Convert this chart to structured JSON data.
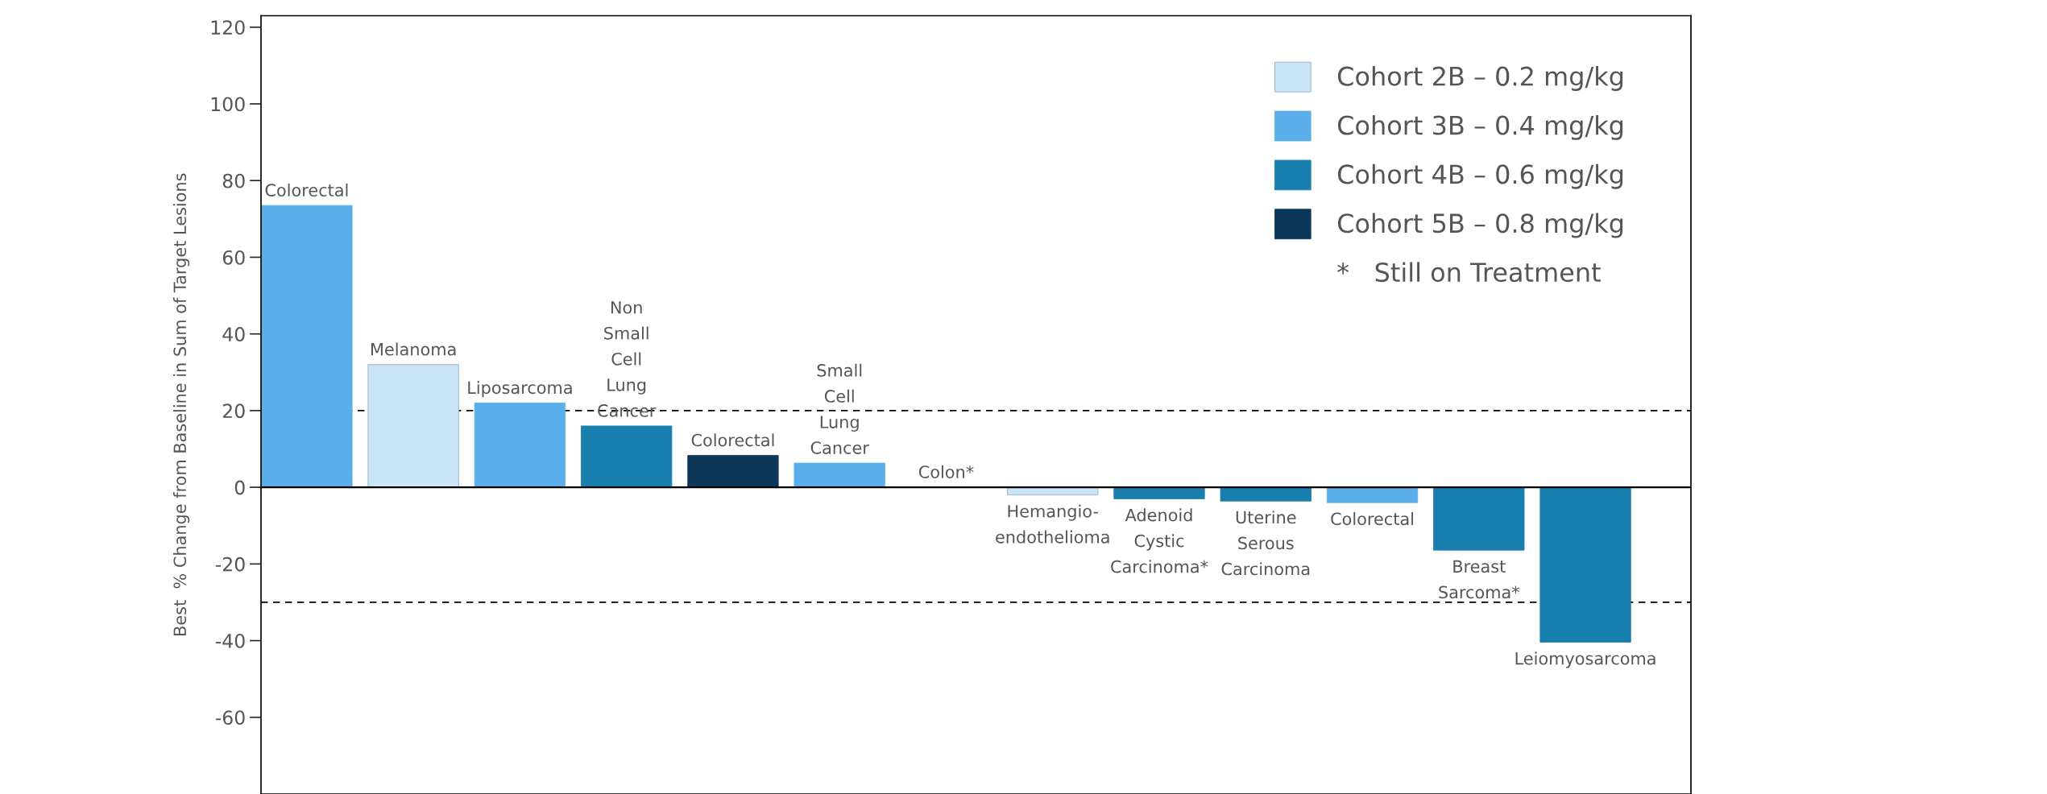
{
  "chart_data": {
    "type": "bar",
    "ylabel": "Best  % Change from Baseline in Sum of Target Lesions",
    "categories": [
      "Colorectal",
      "Melanoma",
      "Liposarcoma",
      "Non\nSmall\nCell\nLung\nCancer",
      "Colorectal",
      "Small\nCell\nLung\nCancer",
      "Colon*",
      "Hemangio-\nendothelioma",
      "Adenoid\nCystic\nCarcinoma*",
      "Uterine\nSerous\nCarcinoma",
      "Colorectal",
      "Breast\nSarcoma*",
      "Leiomyosarcoma"
    ],
    "series": [
      {
        "name": "Cohort 2B – 0.2 mg/kg",
        "color": "#c9e3f7",
        "values": [
          null,
          32,
          null,
          null,
          null,
          null,
          null,
          -2,
          null,
          null,
          null,
          null,
          null
        ]
      },
      {
        "name": "Cohort 3B – 0.4 mg/kg",
        "color": "#5aaeea",
        "values": [
          73.5,
          null,
          22,
          null,
          null,
          6.3,
          0,
          null,
          null,
          null,
          -4,
          null,
          null
        ]
      },
      {
        "name": "Cohort 4B – 0.6 mg/kg",
        "color": "#187fae",
        "values": [
          null,
          null,
          null,
          16,
          null,
          null,
          null,
          null,
          -3,
          -3.6,
          null,
          -16.4,
          -40.4
        ]
      },
      {
        "name": "Cohort 5B – 0.8 mg/kg",
        "color": "#0c3758",
        "values": [
          null,
          null,
          null,
          null,
          8.3,
          null,
          null,
          null,
          null,
          null,
          null,
          null,
          null
        ]
      }
    ],
    "ylim": [
      -80,
      123
    ],
    "yticks": [
      -60,
      -40,
      -20,
      0,
      20,
      40,
      60,
      80,
      100,
      120
    ],
    "ref_lines": [
      {
        "axis": "y",
        "value": 20,
        "line_style": "dashed",
        "color": "#000000"
      },
      {
        "axis": "y",
        "value": -30,
        "line_style": "dashed",
        "color": "#000000"
      }
    ],
    "annotations": [
      "*   Still on Treatment"
    ],
    "legend": "top right",
    "tick_labels": "y",
    "grid": false
  }
}
